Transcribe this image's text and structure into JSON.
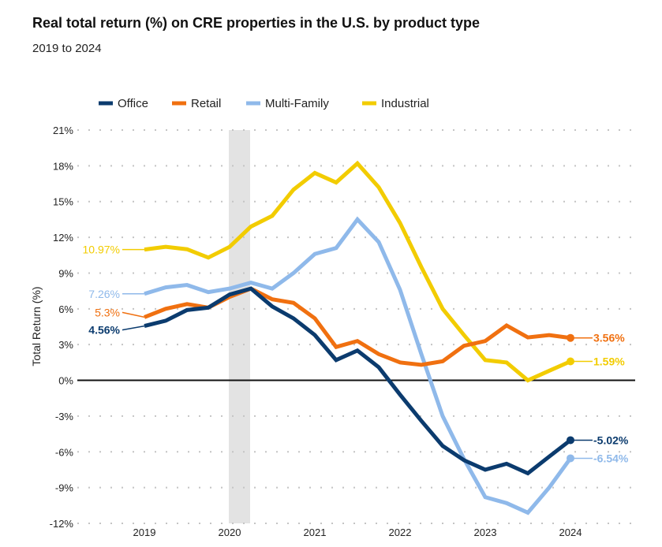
{
  "chart_data": {
    "type": "line",
    "title": "Real total return (%) on CRE properties in the U.S. by product type",
    "subtitle": "2019 to 2024",
    "xlabel": "",
    "ylabel": "Total Return (%)",
    "ylim": [
      -12,
      21
    ],
    "yticks": [
      "21%",
      "18%",
      "15%",
      "12%",
      "9%",
      "6%",
      "3%",
      "0%",
      "-3%",
      "-6%",
      "-9%",
      "-12%"
    ],
    "ytick_values": [
      21,
      18,
      15,
      12,
      9,
      6,
      3,
      0,
      -3,
      -6,
      -9,
      -12
    ],
    "xticks": [
      "2019",
      "2020",
      "2021",
      "2022",
      "2023",
      "2024"
    ],
    "x_quarters": 21,
    "shaded_region": [
      4,
      5
    ],
    "grid": true,
    "legend_position": "top-left",
    "series": [
      {
        "name": "Office",
        "color": "#0b3b6e",
        "start_label": "4.56%",
        "end_label": "-5.02%",
        "values": [
          4.56,
          5.0,
          5.9,
          6.1,
          7.2,
          7.7,
          6.2,
          5.2,
          3.8,
          1.7,
          2.5,
          1.1,
          -1.2,
          -3.4,
          -5.5,
          -6.7,
          -7.5,
          -7.0,
          -7.8,
          -6.4,
          -5.02
        ]
      },
      {
        "name": "Retail",
        "color": "#f07010",
        "start_label": "5.3%",
        "end_label": "3.56%",
        "values": [
          5.3,
          6.0,
          6.4,
          6.1,
          7.0,
          7.7,
          6.8,
          6.5,
          5.2,
          2.8,
          3.3,
          2.2,
          1.5,
          1.3,
          1.6,
          2.9,
          3.3,
          4.6,
          3.6,
          3.8,
          3.56
        ]
      },
      {
        "name": "Multi-Family",
        "color": "#8fb9ea",
        "start_label": "7.26%",
        "end_label": "-6.54%",
        "values": [
          7.26,
          7.8,
          8.0,
          7.4,
          7.7,
          8.2,
          7.7,
          9.0,
          10.6,
          11.1,
          13.5,
          11.6,
          7.6,
          2.2,
          -3.0,
          -6.6,
          -9.8,
          -10.3,
          -11.1,
          -9.0,
          -6.54
        ]
      },
      {
        "name": "Industrial",
        "color": "#f2cc00",
        "start_label": "10.97%",
        "end_label": "1.59%",
        "values": [
          10.97,
          11.2,
          11.0,
          10.3,
          11.2,
          12.9,
          13.8,
          16.0,
          17.4,
          16.6,
          18.2,
          16.2,
          13.2,
          9.5,
          6.0,
          3.8,
          1.7,
          1.5,
          0.0,
          0.8,
          1.59
        ]
      }
    ]
  }
}
